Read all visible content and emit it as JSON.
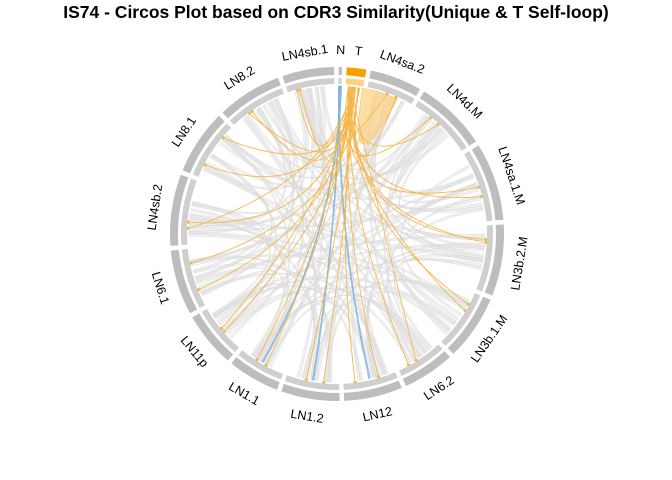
{
  "title": "IS74 - Circos Plot based on CDR3 Similarity(Unique & T Self-loop)",
  "chart_data": {
    "type": "chord",
    "title": "IS74 - Circos Plot based on CDR3 Similarity(Unique & T Self-loop)",
    "sectors": [
      {
        "name": "N",
        "size": 1,
        "color": "#bdbdbd"
      },
      {
        "name": "T",
        "size": 6,
        "color": "#f5a000"
      },
      {
        "name": "LN4sa.2",
        "size": 16,
        "color": "#bdbdbd"
      },
      {
        "name": "LN4d.M",
        "size": 22,
        "color": "#bdbdbd"
      },
      {
        "name": "LN4sa.1.M",
        "size": 24,
        "color": "#bdbdbd"
      },
      {
        "name": "LN3b.2.M",
        "size": 22,
        "color": "#bdbdbd"
      },
      {
        "name": "LN3b.1.M",
        "size": 20,
        "color": "#bdbdbd"
      },
      {
        "name": "LN6.2",
        "size": 16,
        "color": "#bdbdbd"
      },
      {
        "name": "LN12",
        "size": 18,
        "color": "#bdbdbd"
      },
      {
        "name": "LN1.2",
        "size": 18,
        "color": "#bdbdbd"
      },
      {
        "name": "LN1.1",
        "size": 16,
        "color": "#bdbdbd"
      },
      {
        "name": "LN11p",
        "size": 17,
        "color": "#bdbdbd"
      },
      {
        "name": "LN6.1",
        "size": 20,
        "color": "#bdbdbd"
      },
      {
        "name": "LN4sb.2",
        "size": 22,
        "color": "#bdbdbd"
      },
      {
        "name": "LN8.1",
        "size": 20,
        "color": "#bdbdbd"
      },
      {
        "name": "LN8.2",
        "size": 20,
        "color": "#bdbdbd"
      },
      {
        "name": "LN4sb.1",
        "size": 16,
        "color": "#bdbdbd"
      }
    ],
    "link_colors": {
      "general": "#e6e6e6",
      "tumor": "#f5b547",
      "tumor_self_loop": "#ffd080",
      "normal": "#8cbfe8"
    },
    "tumor_links_to": [
      "LN4sa.2",
      "LN4d.M",
      "LN4sa.1.M",
      "LN3b.2.M",
      "LN3b.1.M",
      "LN6.2",
      "LN12",
      "LN1.2",
      "LN1.1",
      "LN11p",
      "LN6.1",
      "LN4sb.2",
      "LN8.1",
      "LN8.2",
      "LN4sb.1"
    ],
    "normal_links_to": [
      "LN12",
      "LN1.2",
      "LN1.1"
    ]
  }
}
